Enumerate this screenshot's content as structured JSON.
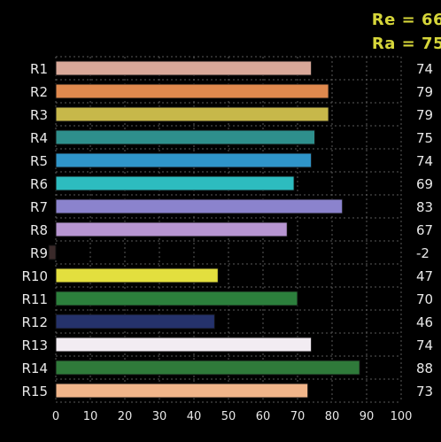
{
  "summary": {
    "re": "Re = 66",
    "ra": "Ra = 75",
    "color": "#d6d63a"
  },
  "chart_data": {
    "type": "bar",
    "orientation": "horizontal",
    "categories": [
      "R1",
      "R2",
      "R3",
      "R4",
      "R5",
      "R6",
      "R7",
      "R8",
      "R9",
      "R10",
      "R11",
      "R12",
      "R13",
      "R14",
      "R15"
    ],
    "values": [
      74,
      79,
      79,
      75,
      74,
      69,
      83,
      67,
      -2,
      47,
      70,
      46,
      74,
      88,
      73
    ],
    "value_labels": [
      "74",
      "79",
      "79",
      "75",
      "74",
      "69",
      "83",
      "67",
      "-2",
      "47",
      "70",
      "46",
      "74",
      "88",
      "73"
    ],
    "colors": [
      "#d9a899",
      "#e0894e",
      "#c7b84a",
      "#2e8f8c",
      "#2f95c9",
      "#2dbcbf",
      "#8b83cd",
      "#b795d1",
      "#3a2a2a",
      "#e3df3e",
      "#2c7f3c",
      "#25326b",
      "#f2ecf2",
      "#2f7a3a",
      "#f1b58a"
    ],
    "xticks": [
      "0",
      "10",
      "20",
      "30",
      "40",
      "50",
      "60",
      "70",
      "80",
      "90",
      "100"
    ],
    "xlim": [
      0,
      100
    ],
    "title": "",
    "xlabel": "",
    "ylabel": "",
    "grid": true,
    "text_color": "#e8e8e8",
    "grid_color": "#5a5a5a"
  }
}
